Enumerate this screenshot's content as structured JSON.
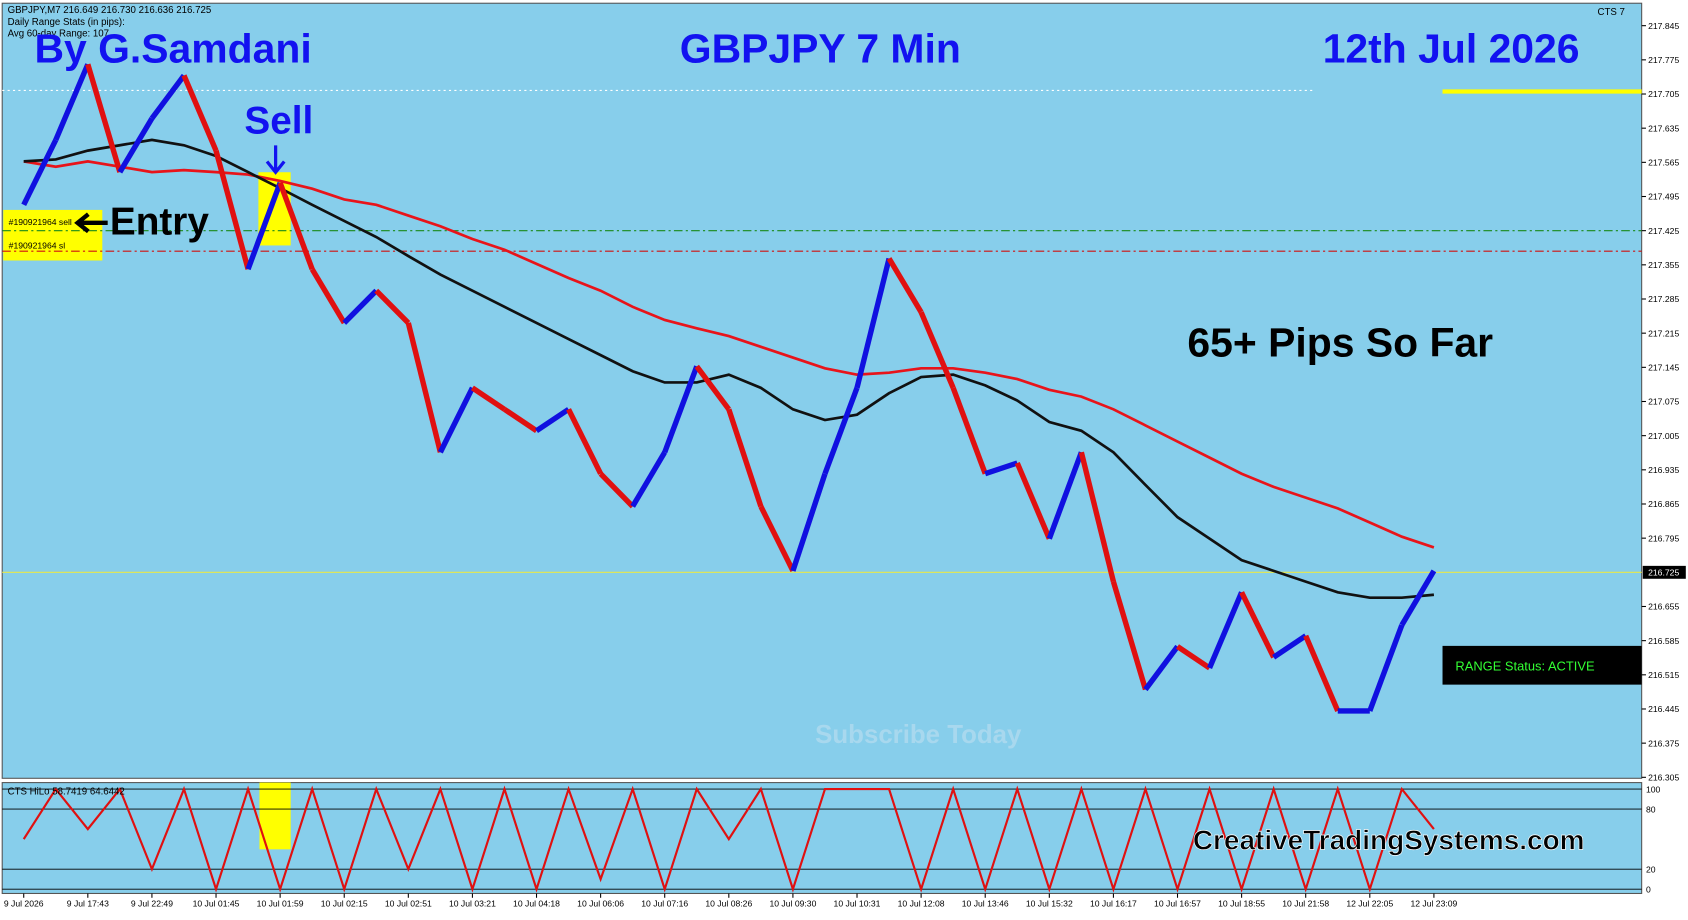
{
  "chart_data": {
    "type": "line",
    "header": "GBPJPY,M7  216.649 216.730 216.636 216.725",
    "stats_title": "Daily Range Stats (in pips):",
    "stats_avg": "Avg 60-day Range: 107",
    "brand_corner": "CTS 7",
    "author": "By G.Samdani",
    "title": "GBPJPY 7 Min",
    "date": "12th Jul 2026",
    "sell_label": "Sell",
    "entry_label": "Entry",
    "result": "65+ Pips So Far",
    "watermark": "Subscribe Today",
    "website": "CreativeTradingSystems.com",
    "status": "RANGE Status: ACTIVE",
    "order_sell": "#190921964 sell",
    "order_sl": "#190921964 sl",
    "categories": [
      "9 Jul 2026",
      null,
      "9 Jul 17:43",
      null,
      "9 Jul 22:49",
      null,
      "10 Jul 01:45",
      null,
      "10 Jul 01:59",
      null,
      "10 Jul 02:15",
      null,
      "10 Jul 02:51",
      null,
      "10 Jul 03:21",
      null,
      "10 Jul 04:18",
      null,
      "10 Jul 06:06",
      null,
      "10 Jul 07:16",
      null,
      "10 Jul 08:26",
      null,
      "10 Jul 09:30",
      null,
      "10 Jul 10:31",
      null,
      "10 Jul 12:08",
      null,
      "10 Jul 13:46",
      null,
      "10 Jul 15:32",
      null,
      "10 Jul 16:17",
      null,
      "10 Jul 16:57",
      null,
      "10 Jul 18:55",
      null,
      "10 Jul 21:58",
      null,
      "12 Jul 22:05",
      null,
      "12 Jul 23:09"
    ],
    "series": [
      {
        "color": "#e01010",
        "up_color": "#1010e0",
        "values": [
          217.478,
          217.611,
          217.766,
          217.545,
          217.655,
          217.743,
          217.589,
          217.346,
          217.523,
          217.346,
          217.236,
          217.302,
          217.236,
          216.971,
          217.103,
          217.059,
          217.015,
          217.059,
          216.927,
          216.86,
          216.971,
          217.147,
          217.059,
          216.86,
          216.728,
          216.927,
          217.103,
          217.368,
          217.258,
          217.103,
          216.927,
          216.949,
          216.794,
          216.971,
          216.706,
          216.485,
          216.573,
          216.529,
          216.684,
          216.551,
          216.595,
          216.441,
          216.441,
          216.617,
          216.728
        ]
      },
      {
        "color": "#e8141a",
        "values": [
          217.567,
          217.556,
          217.567,
          217.556,
          217.545,
          217.549,
          217.545,
          217.54,
          217.527,
          217.511,
          217.489,
          217.478,
          217.456,
          217.434,
          217.408,
          217.386,
          217.357,
          217.328,
          217.302,
          217.269,
          217.242,
          217.225,
          217.209,
          217.187,
          217.165,
          217.143,
          217.13,
          217.134,
          217.143,
          217.143,
          217.134,
          217.121,
          217.099,
          217.085,
          217.059,
          217.026,
          216.993,
          216.96,
          216.927,
          216.9,
          216.878,
          216.856,
          216.827,
          216.798,
          216.776
        ]
      },
      {
        "color": "#111111",
        "values": [
          217.567,
          217.571,
          217.589,
          217.6,
          217.611,
          217.6,
          217.578,
          217.545,
          217.512,
          217.478,
          217.445,
          217.412,
          217.373,
          217.335,
          217.302,
          217.269,
          217.236,
          217.203,
          217.17,
          217.137,
          217.114,
          217.114,
          217.13,
          217.103,
          217.059,
          217.037,
          217.048,
          217.092,
          217.125,
          217.13,
          217.108,
          217.077,
          217.033,
          217.015,
          216.971,
          216.904,
          216.838,
          216.794,
          216.75,
          216.728,
          216.706,
          216.684,
          216.673,
          216.673,
          216.679
        ]
      }
    ],
    "ylim": [
      216.303,
      217.891
    ],
    "yticks": [
      216.305,
      216.375,
      216.445,
      216.515,
      216.585,
      216.655,
      216.795,
      216.865,
      216.935,
      217.005,
      217.075,
      217.145,
      217.215,
      217.285,
      217.355,
      217.425,
      217.495,
      217.565,
      217.635,
      217.705,
      217.775,
      217.845
    ],
    "last": 216.725,
    "hlines": [
      {
        "value": 217.425,
        "color": "#1a8a1a"
      },
      {
        "value": 217.383,
        "color": "#d01010"
      }
    ],
    "oscillator": {
      "label": "CTS HiLo 58.7419 64.6442",
      "color": "#e01010",
      "values": [
        50,
        100,
        60,
        100,
        20,
        100,
        0,
        100,
        0,
        100,
        0,
        100,
        20,
        100,
        0,
        100,
        0,
        100,
        10,
        100,
        0,
        100,
        50,
        100,
        0,
        100,
        100,
        100,
        0,
        100,
        0,
        100,
        0,
        100,
        0,
        100,
        0,
        100,
        0,
        100,
        0,
        100,
        0,
        100,
        60
      ],
      "ylim": [
        0,
        100
      ],
      "yticks": [
        0,
        20,
        80,
        100
      ]
    }
  }
}
